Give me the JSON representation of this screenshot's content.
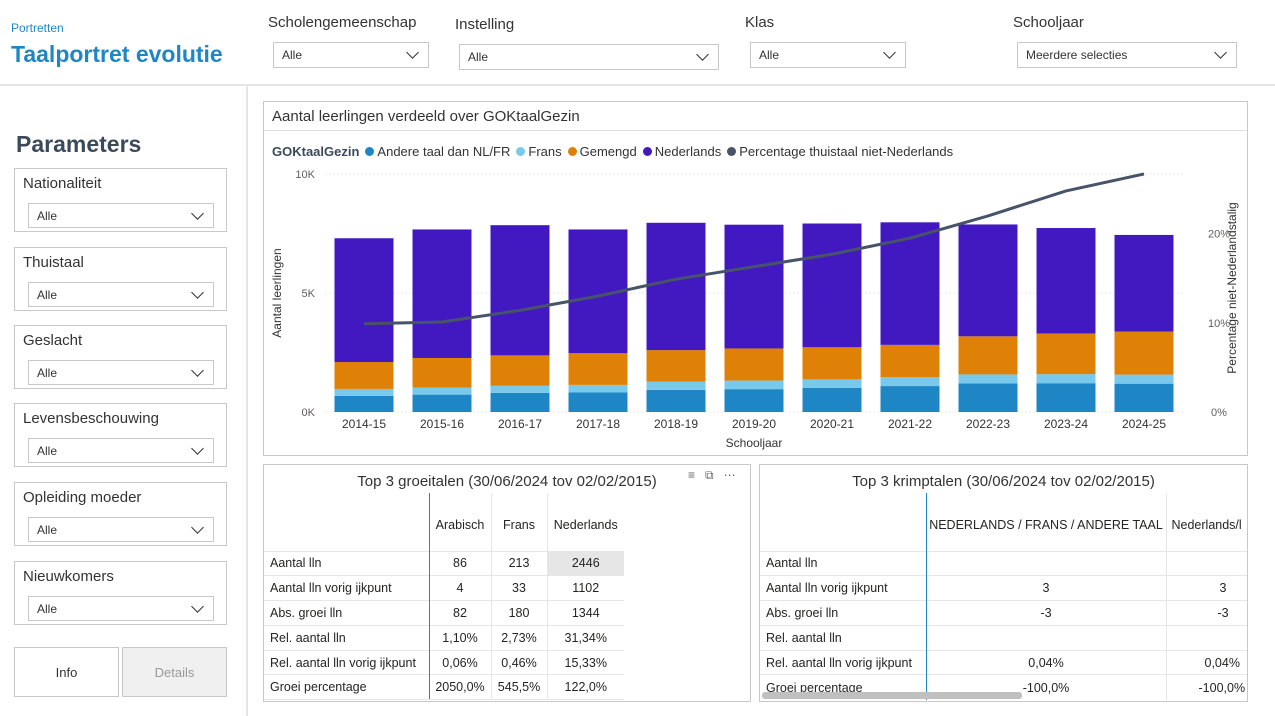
{
  "header": {
    "crumb": "Portretten",
    "title": "Taalportret evolutie",
    "filters": [
      {
        "label": "Scholengemeenschap",
        "value": "Alle"
      },
      {
        "label": "Instelling",
        "value": "Alle"
      },
      {
        "label": "Klas",
        "value": "Alle"
      },
      {
        "label": "Schooljaar",
        "value": "Meerdere selecties"
      }
    ]
  },
  "sidebar": {
    "title": "Parameters",
    "params": [
      {
        "label": "Nationaliteit",
        "value": "Alle"
      },
      {
        "label": "Thuistaal",
        "value": "Alle"
      },
      {
        "label": "Geslacht",
        "value": "Alle"
      },
      {
        "label": "Levensbeschouwing",
        "value": "Alle"
      },
      {
        "label": "Opleiding moeder",
        "value": "Alle"
      },
      {
        "label": "Nieuwkomers",
        "value": "Alle"
      }
    ],
    "buttons": {
      "info": "Info",
      "details": "Details"
    }
  },
  "chart_title": "Aantal leerlingen verdeeld over GOKtaalGezin",
  "chart_data": {
    "type": "bar",
    "stacked": true,
    "title": "Aantal leerlingen verdeeld over GOKtaalGezin",
    "legend_title": "GOKtaalGezin",
    "legend_position": "top-left",
    "xlabel": "Schooljaar",
    "ylabel": "Aantal leerlingen",
    "y2label": "Percentage niet-Nederlandstalig",
    "ylim": [
      0,
      10000
    ],
    "y2lim": [
      0,
      26.7
    ],
    "yticks": [
      "0K",
      "5K",
      "10K"
    ],
    "yticks_values": [
      0,
      5000,
      10000
    ],
    "y2ticks": [
      "0%",
      "10%",
      "20%"
    ],
    "y2ticks_values": [
      0,
      10,
      20
    ],
    "categories": [
      "2014-15",
      "2015-16",
      "2016-17",
      "2017-18",
      "2018-19",
      "2019-20",
      "2020-21",
      "2021-22",
      "2022-23",
      "2023-24",
      "2024-25"
    ],
    "series": [
      {
        "name": "Andere taal dan NL/FR",
        "color": "#1f86c6",
        "values": [
          680,
          730,
          800,
          820,
          930,
          960,
          1010,
          1090,
          1200,
          1210,
          1190
        ]
      },
      {
        "name": "Frans",
        "color": "#79c9ec",
        "values": [
          290,
          300,
          300,
          320,
          340,
          360,
          360,
          380,
          380,
          380,
          380
        ]
      },
      {
        "name": "Gemengd",
        "color": "#de8106",
        "values": [
          1130,
          1240,
          1280,
          1330,
          1330,
          1350,
          1350,
          1350,
          1600,
          1710,
          1810
        ]
      },
      {
        "name": "Nederlands",
        "color": "#4219c0",
        "values": [
          5200,
          5400,
          5470,
          5200,
          5350,
          5200,
          5200,
          5150,
          4700,
          4430,
          4060
        ]
      },
      {
        "name": "Percentage thuistaal niet-Nederlands",
        "color": "#475468",
        "axis": "right",
        "type": "line",
        "values": [
          9.9,
          10.1,
          11.4,
          13.0,
          14.9,
          16.3,
          17.7,
          19.5,
          22.0,
          24.8,
          26.7
        ]
      }
    ],
    "grid": true
  },
  "growth_table": {
    "title": "Top 3 groeitalen (30/06/2024 tov 02/02/2015)",
    "columns": [
      "Arabisch",
      "Frans",
      "Nederlands"
    ],
    "rows": [
      {
        "label": "Aantal lln",
        "values": [
          "86",
          "213",
          "2446"
        ]
      },
      {
        "label": "Aantal lln vorig ijkpunt",
        "values": [
          "4",
          "33",
          "1102"
        ]
      },
      {
        "label": "Abs. groei lln",
        "values": [
          "82",
          "180",
          "1344"
        ]
      },
      {
        "label": "Rel. aantal lln",
        "values": [
          "1,10%",
          "2,73%",
          "31,34%"
        ]
      },
      {
        "label": "Rel. aantal lln vorig ijkpunt",
        "values": [
          "0,06%",
          "0,46%",
          "15,33%"
        ]
      },
      {
        "label": "Groei percentage",
        "values": [
          "2050,0%",
          "545,5%",
          "122,0%"
        ]
      }
    ]
  },
  "shrink_table": {
    "title": "Top 3 krimptalen (30/06/2024 tov 02/02/2015)",
    "columns": [
      "NEDERLANDS / FRANS / ANDERE TAAL",
      "Nederlands/l"
    ],
    "rows": [
      {
        "label": "Aantal lln",
        "values": [
          "",
          ""
        ]
      },
      {
        "label": "Aantal lln vorig ijkpunt",
        "values": [
          "3",
          "3"
        ]
      },
      {
        "label": "Abs. groei lln",
        "values": [
          "-3",
          "-3"
        ]
      },
      {
        "label": "Rel. aantal lln",
        "values": [
          "",
          ""
        ]
      },
      {
        "label": "Rel. aantal lln vorig ijkpunt",
        "values": [
          "0,04%",
          "0,04%"
        ]
      },
      {
        "label": "Groei percentage",
        "values": [
          "-100,0%",
          "-100,0%"
        ]
      }
    ]
  }
}
